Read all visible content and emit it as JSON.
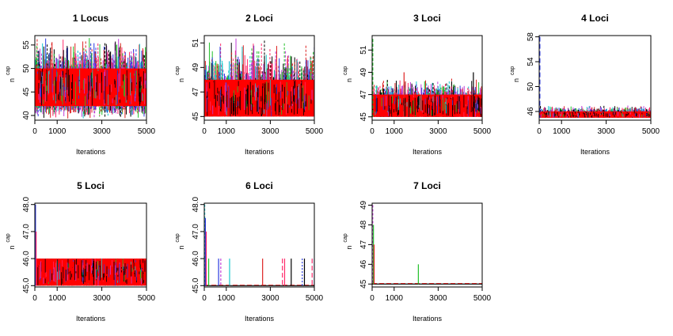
{
  "chart_data": [
    {
      "type": "line",
      "title": "1 Locus",
      "xlabel": "Iterations",
      "ylabel": "n",
      "ylabel_sup": "cap",
      "xlim": [
        0,
        5000
      ],
      "ylim": [
        39,
        57
      ],
      "xticks": [
        "0",
        "1000",
        "3000",
        "5000"
      ],
      "yticks": [
        "40",
        "45",
        "50",
        "55"
      ],
      "pattern": "dense",
      "band": [
        42,
        50
      ],
      "spike_range": [
        39,
        57
      ],
      "spikes": []
    },
    {
      "type": "line",
      "title": "2 Loci",
      "xlabel": "Iterations",
      "ylabel": "n",
      "ylabel_sup": "cap",
      "xlim": [
        0,
        5000
      ],
      "ylim": [
        44.7,
        51.6
      ],
      "xticks": [
        "0",
        "1000",
        "3000",
        "5000"
      ],
      "yticks": [
        "45",
        "47",
        "49",
        "51"
      ],
      "pattern": "dense",
      "band": [
        45,
        48
      ],
      "spike_range": [
        45,
        51.5
      ],
      "spikes": []
    },
    {
      "type": "line",
      "title": "3 Loci",
      "xlabel": "Iterations",
      "ylabel": "n",
      "ylabel_sup": "cap",
      "xlim": [
        0,
        5000
      ],
      "ylim": [
        44.7,
        52.3
      ],
      "xticks": [
        "0",
        "1000",
        "3000",
        "5000"
      ],
      "yticks": [
        "45",
        "47",
        "49",
        "51"
      ],
      "pattern": "dense",
      "band": [
        45,
        47
      ],
      "spike_range": [
        45,
        48.5
      ],
      "spikes": [
        {
          "x": 30,
          "y": 52,
          "color": "#22c02a",
          "dash": "4,2"
        },
        {
          "x": 1450,
          "y": 49,
          "color": "#dd2222",
          "dash": ""
        },
        {
          "x": 4600,
          "y": 49,
          "color": "#000000",
          "dash": ""
        }
      ]
    },
    {
      "type": "line",
      "title": "4 Loci",
      "xlabel": "Iterations",
      "ylabel": "n",
      "ylabel_sup": "cap",
      "xlim": [
        0,
        5000
      ],
      "ylim": [
        44.6,
        58.2
      ],
      "xticks": [
        "0",
        "1000",
        "3000",
        "5000"
      ],
      "yticks": [
        "46",
        "50",
        "54",
        "58"
      ],
      "pattern": "dense",
      "band": [
        45,
        46
      ],
      "spike_range": [
        45,
        47
      ],
      "spikes": [
        {
          "x": 30,
          "y": 58,
          "color": "#2a3ae0",
          "dash": "6,3"
        }
      ]
    },
    {
      "type": "line",
      "title": "5 Loci",
      "xlabel": "Iterations",
      "ylabel": "n",
      "ylabel_sup": "cap",
      "xlim": [
        0,
        5000
      ],
      "ylim": [
        44.95,
        48.05
      ],
      "xticks": [
        "0",
        "1000",
        "3000",
        "5000"
      ],
      "yticks": [
        "45.0",
        "46.0",
        "47.0",
        "48.0"
      ],
      "pattern": "dense",
      "band": [
        45,
        46
      ],
      "spike_range": [
        45,
        46
      ],
      "spikes": [
        {
          "x": 30,
          "y": 48,
          "color": "#2a3ae0",
          "dash": ""
        },
        {
          "x": 60,
          "y": 47,
          "color": "#ff2a6a",
          "dash": ""
        }
      ]
    },
    {
      "type": "line",
      "title": "6 Loci",
      "xlabel": "Iterations",
      "ylabel": "n",
      "ylabel_sup": "cap",
      "xlim": [
        0,
        5000
      ],
      "ylim": [
        44.95,
        48.05
      ],
      "xticks": [
        "0",
        "1000",
        "3000",
        "5000"
      ],
      "yticks": [
        "45.0",
        "46.0",
        "47.0",
        "48.0"
      ],
      "pattern": "sparse",
      "spikes": [
        {
          "x": 20,
          "y": 48,
          "color": "#19c8cc",
          "dash": "3,2"
        },
        {
          "x": 50,
          "y": 47.5,
          "color": "#2a3ae0",
          "dash": ""
        },
        {
          "x": 90,
          "y": 47,
          "color": "#ff2a6a",
          "dash": ""
        },
        {
          "x": 200,
          "y": 46,
          "color": "#22c02a",
          "dash": ""
        },
        {
          "x": 650,
          "y": 46,
          "color": "#2a3ae0",
          "dash": ""
        },
        {
          "x": 750,
          "y": 46,
          "color": "#c03cd8",
          "dash": "3,2"
        },
        {
          "x": 1150,
          "y": 46,
          "color": "#19c8cc",
          "dash": ""
        },
        {
          "x": 2650,
          "y": 46,
          "color": "#dd2222",
          "dash": ""
        },
        {
          "x": 3550,
          "y": 46,
          "color": "#ff2a6a",
          "dash": "6,3"
        },
        {
          "x": 3650,
          "y": 46,
          "color": "#ff2a6a",
          "dash": ""
        },
        {
          "x": 3950,
          "y": 46,
          "color": "#000000",
          "dash": ""
        },
        {
          "x": 4450,
          "y": 46,
          "color": "#2a3ae0",
          "dash": "2,2"
        },
        {
          "x": 4550,
          "y": 46,
          "color": "#000000",
          "dash": ""
        },
        {
          "x": 4900,
          "y": 46,
          "color": "#ff2a6a",
          "dash": "6,3"
        },
        {
          "x": 5000,
          "y": 46,
          "color": "#2a3ae0",
          "dash": ""
        }
      ]
    },
    {
      "type": "line",
      "title": "7 Loci",
      "xlabel": "Iterations",
      "ylabel": "n",
      "ylabel_sup": "cap",
      "xlim": [
        0,
        5000
      ],
      "ylim": [
        44.85,
        49.1
      ],
      "xticks": [
        "0",
        "1000",
        "3000",
        "5000"
      ],
      "yticks": [
        "45",
        "46",
        "47",
        "48",
        "49"
      ],
      "pattern": "sparse",
      "spikes": [
        {
          "x": 30,
          "y": 49,
          "color": "#c03cd8",
          "dash": "3,2"
        },
        {
          "x": 60,
          "y": 48,
          "color": "#22c02a",
          "dash": ""
        },
        {
          "x": 90,
          "y": 47,
          "color": "#dd2222",
          "dash": ""
        },
        {
          "x": 2100,
          "y": 46,
          "color": "#22c02a",
          "dash": ""
        }
      ]
    }
  ],
  "colors": {
    "series": [
      "#000000",
      "#dd2222",
      "#22c02a",
      "#2a3ae0",
      "#19c8cc",
      "#ff2a6a",
      "#c03cd8",
      "#aaaaaa"
    ],
    "band": "#ff0000"
  }
}
